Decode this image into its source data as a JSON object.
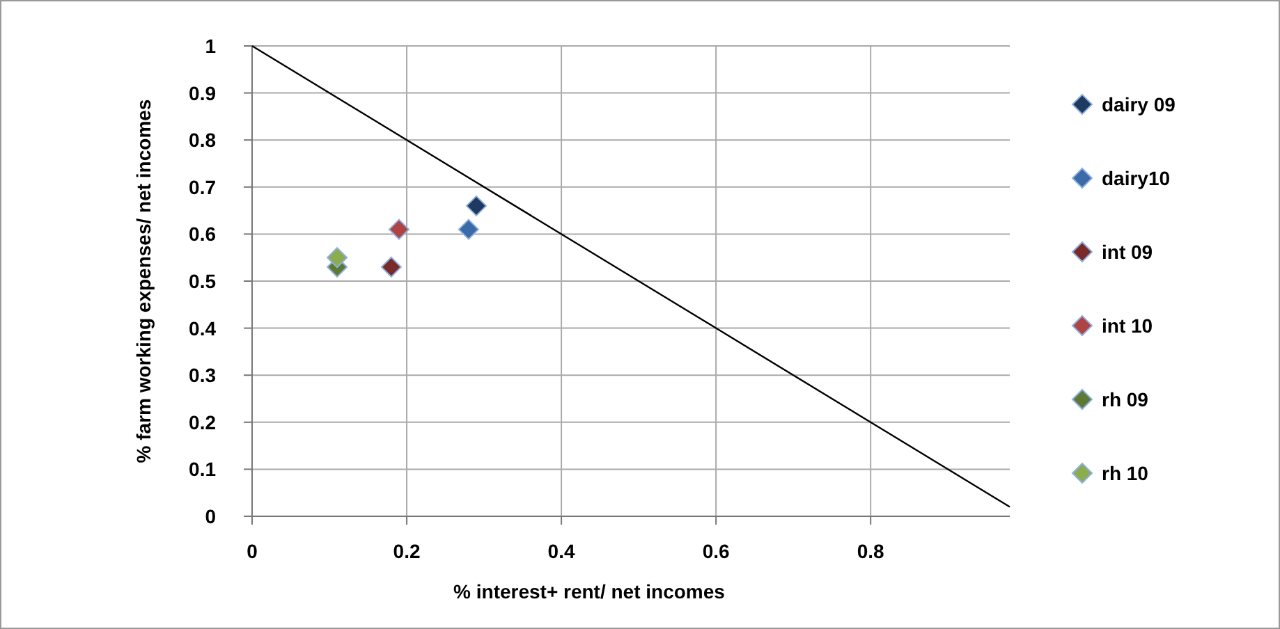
{
  "chart_data": {
    "type": "scatter",
    "xlabel": "% interest+ rent/ net incomes",
    "ylabel": "% farm working expenses/ net incomes",
    "xlim": [
      0,
      0.98
    ],
    "ylim": [
      0,
      1
    ],
    "xticks": [
      0,
      0.2,
      0.4,
      0.6,
      0.8
    ],
    "yticks": [
      0,
      0.1,
      0.2,
      0.3,
      0.4,
      0.5,
      0.6,
      0.7,
      0.8,
      0.9,
      1
    ],
    "grid": true,
    "legend": "right",
    "marker": "diamond",
    "series": [
      {
        "name": "dairy 09",
        "color": "#1f3a60",
        "x": [
          0.29
        ],
        "values": [
          0.66
        ]
      },
      {
        "name": "dairy10",
        "color": "#3a6aa8",
        "x": [
          0.28
        ],
        "values": [
          0.61
        ]
      },
      {
        "name": "int 09",
        "color": "#7a2a2a",
        "x": [
          0.18
        ],
        "values": [
          0.53
        ]
      },
      {
        "name": "int 10",
        "color": "#b04444",
        "x": [
          0.19
        ],
        "values": [
          0.61
        ]
      },
      {
        "name": "rh 09",
        "color": "#5c7a34",
        "x": [
          0.11
        ],
        "values": [
          0.53
        ]
      },
      {
        "name": "rh 10",
        "color": "#8cac50",
        "x": [
          0.11
        ],
        "values": [
          0.55
        ]
      },
      {
        "type": "line",
        "color": "#000000",
        "x": [
          0,
          0.98
        ],
        "values": [
          1,
          0.02
        ],
        "marker": "none"
      }
    ]
  }
}
